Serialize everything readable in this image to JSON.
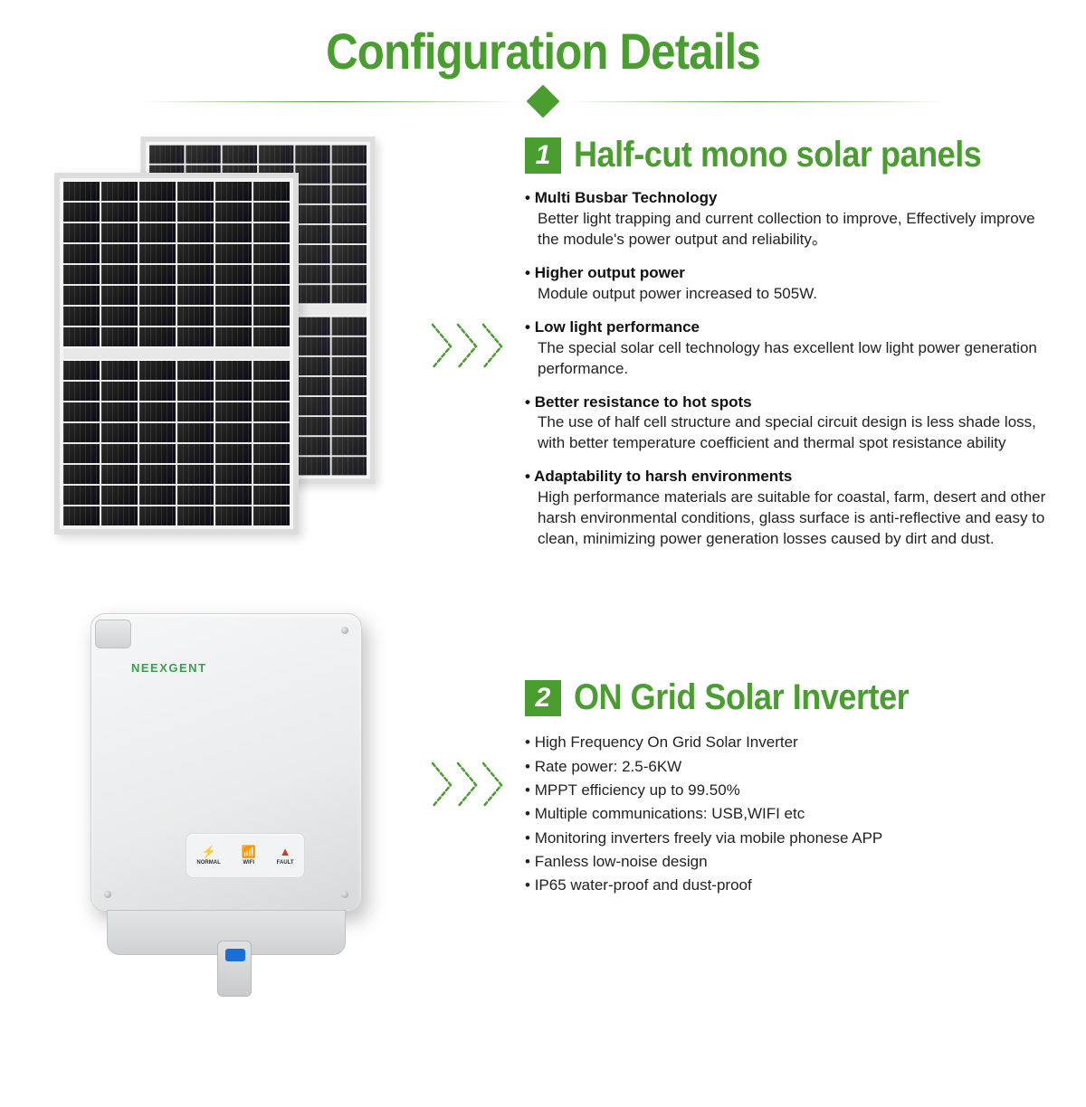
{
  "colors": {
    "accent": "#4a9d2f",
    "text": "#1a1a1a",
    "bg": "#ffffff"
  },
  "title": "Configuration Details",
  "sections": [
    {
      "badge": "1",
      "title": "Half-cut mono solar panels",
      "features": [
        {
          "title": "Multi Busbar Technology",
          "desc": "Better light trapping and current collection to improve, Effectively improve the module's power output and reliability。"
        },
        {
          "title": "Higher output power",
          "desc": "Module output power increased to 505W."
        },
        {
          "title": "Low light performance",
          "desc": "The special solar cell technology has excellent low light power generation performance."
        },
        {
          "title": "Better resistance to hot spots",
          "desc": "The use of half cell structure and special circuit design is less shade loss, with better temperature coefficient and thermal spot resistance ability"
        },
        {
          "title": "Adaptability to harsh environments",
          "desc": "High performance materials are suitable for coastal, farm, desert and other harsh environmental conditions, glass surface is anti-reflective and easy to clean, minimizing power generation losses caused by dirt and dust."
        }
      ]
    },
    {
      "badge": "2",
      "title": "ON Grid Solar Inverter",
      "bullets": [
        "High Frequency On Grid Solar Inverter",
        "Rate power: 2.5-6KW",
        "MPPT efficiency up to 99.50%",
        "Multiple communications: USB,WIFI etc",
        "Monitoring inverters freely via mobile phonese APP",
        "Fanless low-noise design",
        "IP65 water-proof and dust-proof"
      ]
    }
  ],
  "inverter": {
    "brand": "NEEXGENT",
    "indicators": [
      {
        "icon": "⚡",
        "label": "NORMAL",
        "color": "#3aa04a"
      },
      {
        "icon": "📶",
        "label": "WIFI",
        "color": "#555555"
      },
      {
        "icon": "▲",
        "label": "FAULT",
        "color": "#d23b2a"
      }
    ]
  },
  "arrow": {
    "chevron_count": 3,
    "stroke": "#4a9d2f",
    "dash": "4 3"
  }
}
